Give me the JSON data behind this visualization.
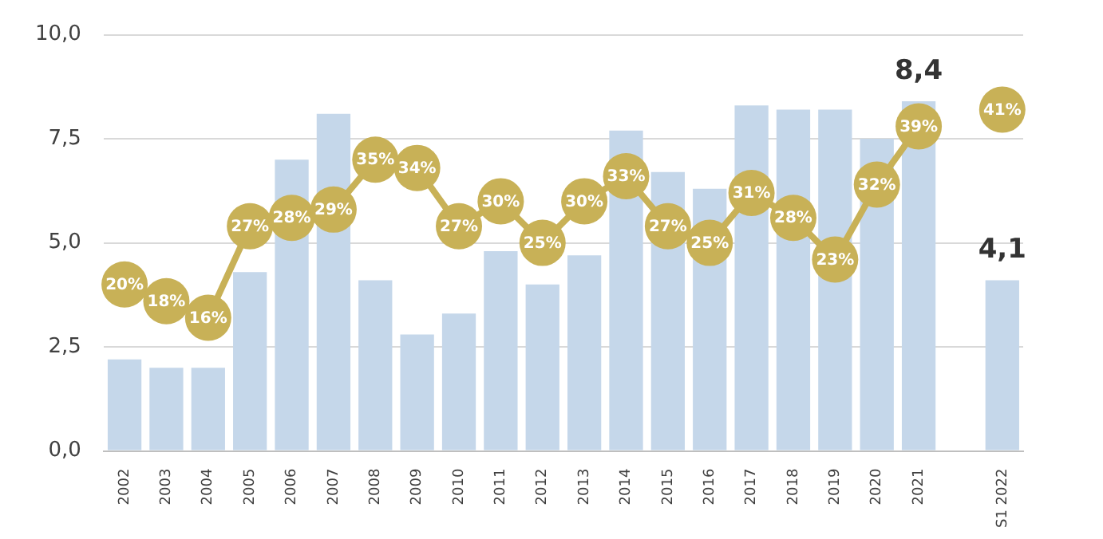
{
  "chart_data": {
    "type": "bar",
    "categories": [
      "2002",
      "2003",
      "2004",
      "2005",
      "2006",
      "2007",
      "2008",
      "2009",
      "2010",
      "2011",
      "2012",
      "2013",
      "2014",
      "2015",
      "2016",
      "2017",
      "2018",
      "2019",
      "2020",
      "2021",
      null,
      "S1 2022"
    ],
    "series": [
      {
        "color": "#c5d7ea",
        "values": [
          2.2,
          2.0,
          2.0,
          4.3,
          7.0,
          8.1,
          4.1,
          2.8,
          3.3,
          4.8,
          4.0,
          4.7,
          7.7,
          6.7,
          6.3,
          8.3,
          8.2,
          8.2,
          7.5,
          8.4,
          null,
          4.1
        ],
        "value_labels": [
          null,
          null,
          null,
          null,
          null,
          null,
          null,
          null,
          null,
          null,
          null,
          null,
          null,
          null,
          null,
          null,
          null,
          null,
          null,
          "8,4",
          null,
          "4,1"
        ]
      },
      {
        "type": "line",
        "axis": "y2",
        "color": "#c8b157",
        "values": [
          20,
          18,
          16,
          27,
          28,
          29,
          35,
          34,
          27,
          30,
          25,
          30,
          33,
          27,
          25,
          31,
          28,
          23,
          32,
          39,
          null,
          41
        ],
        "value_labels": [
          "20%",
          "18%",
          "16%",
          "27%",
          "28%",
          "29%",
          "35%",
          "34%",
          "27%",
          "30%",
          "25%",
          "30%",
          "33%",
          "27%",
          "25%",
          "31%",
          "28%",
          "23%",
          "32%",
          "39%",
          null,
          "41%"
        ]
      }
    ],
    "ylim": [
      0,
      10
    ],
    "yticks": [
      {
        "value": 0,
        "label": "0,0"
      },
      {
        "value": 2.5,
        "label": "2,5"
      },
      {
        "value": 5,
        "label": "5,0"
      },
      {
        "value": 7.5,
        "label": "7,5"
      },
      {
        "value": 10,
        "label": "10,0"
      }
    ],
    "y2lim": [
      0,
      50
    ],
    "tick_labels": [
      "x",
      "y"
    ],
    "grid": "y",
    "legend": false,
    "marker": "circle",
    "line_style": "solid"
  }
}
